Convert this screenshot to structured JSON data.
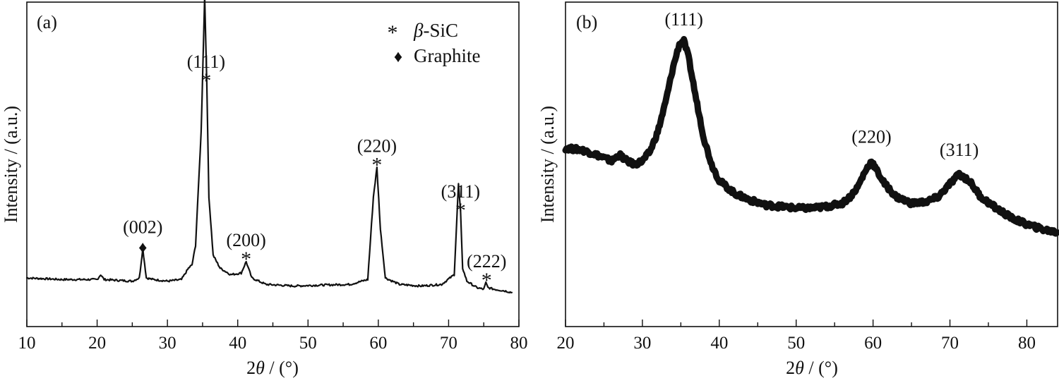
{
  "chart_data": [
    {
      "type": "line",
      "panel_label": "(a)",
      "xlabel_prefix": "2",
      "xlabel_symbol": "θ",
      "xlabel_suffix": " / (°)",
      "ylabel": "Intensity / (a.u.)",
      "xlim": [
        10,
        80
      ],
      "ylim": [
        0,
        100
      ],
      "xticks": [
        10,
        20,
        30,
        40,
        50,
        60,
        70,
        80
      ],
      "yticks_shown": false,
      "legend": {
        "position": "top-right",
        "entries": [
          {
            "marker": "*",
            "name_symbol": "β",
            "name_rest": "-SiC"
          },
          {
            "marker": "♦",
            "name": "Graphite"
          }
        ]
      },
      "series": [
        {
          "x": [
            10,
            15,
            20,
            20.5,
            21,
            25,
            26,
            26.5,
            27,
            28,
            30,
            32,
            33,
            33.5,
            34,
            34.8,
            35.3,
            35.6,
            35.9,
            36.5,
            37.5,
            39,
            40.5,
            41.2,
            42,
            44,
            48,
            52,
            56,
            58.5,
            59.3,
            59.8,
            60.3,
            61,
            63,
            66,
            69,
            70.8,
            71.4,
            71.7,
            72.0,
            72.6,
            74,
            75,
            75.3,
            75.6,
            76.5,
            78,
            79
          ],
          "y": [
            15,
            14.5,
            14.5,
            16,
            14.5,
            14,
            15,
            24,
            15,
            14.5,
            14,
            14.5,
            18,
            19,
            25,
            60,
            102,
            75,
            40,
            22,
            18,
            16,
            16.5,
            20,
            15,
            13,
            12.5,
            12.8,
            13,
            14.5,
            40,
            49,
            30,
            15,
            13,
            12.5,
            13,
            16,
            44,
            35,
            18,
            14,
            12,
            11.5,
            13.5,
            12,
            11.5,
            11,
            10.5
          ]
        }
      ],
      "peaks": [
        {
          "label": "(002)",
          "x": 26.5,
          "marker": "♦"
        },
        {
          "label": "(111)",
          "x": 35.5,
          "marker": "*"
        },
        {
          "label": "(200)",
          "x": 41.2,
          "marker": "*"
        },
        {
          "label": "(220)",
          "x": 59.8,
          "marker": "*"
        },
        {
          "label": "(311)",
          "x": 71.7,
          "marker": "*"
        },
        {
          "label": "(222)",
          "x": 75.4,
          "marker": "*"
        }
      ]
    },
    {
      "type": "line",
      "panel_label": "(b)",
      "xlabel_prefix": "2",
      "xlabel_symbol": "θ",
      "xlabel_suffix": " / (°)",
      "ylabel": "Intensity / (a.u.)",
      "xlim": [
        20,
        84
      ],
      "ylim": [
        0,
        100
      ],
      "xticks": [
        20,
        30,
        40,
        50,
        60,
        70,
        80
      ],
      "yticks_shown": false,
      "series": [
        {
          "x": [
            20,
            22,
            24,
            26,
            27,
            28,
            29,
            30,
            31,
            32,
            33,
            34,
            34.8,
            35.4,
            36,
            37,
            38,
            39,
            40,
            42,
            44,
            46,
            48,
            50,
            52,
            54,
            56,
            57,
            58,
            59,
            59.8,
            60.5,
            61.5,
            63,
            65,
            67,
            68.5,
            70,
            71.2,
            72.5,
            74,
            76,
            78,
            80,
            82,
            84
          ],
          "y": [
            55,
            54.5,
            53,
            51,
            53,
            51,
            50,
            51,
            54,
            60,
            69,
            80,
            87,
            88,
            83,
            70,
            58,
            50,
            45,
            41,
            39,
            37.5,
            37,
            36.5,
            36.5,
            37,
            38,
            40,
            43,
            48,
            51,
            48,
            44,
            40,
            38,
            38.5,
            40,
            44,
            47,
            45,
            40,
            36.5,
            33.5,
            31.5,
            30,
            29
          ]
        }
      ],
      "peaks": [
        {
          "label": "(111)",
          "x": 35.4
        },
        {
          "label": "(220)",
          "x": 59.8
        },
        {
          "label": "(311)",
          "x": 71.2
        }
      ]
    }
  ]
}
